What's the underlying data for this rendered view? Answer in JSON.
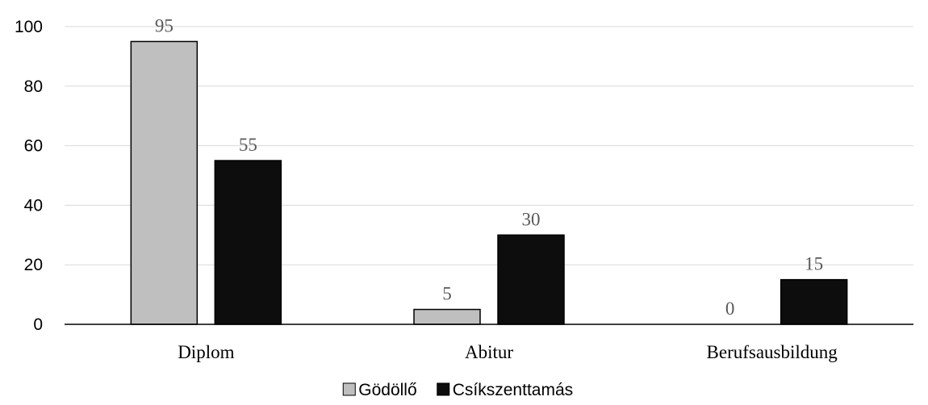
{
  "chart_data": {
    "type": "bar",
    "categories": [
      "Diplom",
      "Abitur",
      "Berufsausbildung"
    ],
    "series": [
      {
        "name": "Gödöllő",
        "values": [
          95,
          5,
          0
        ],
        "color": "#bfbfbf"
      },
      {
        "name": "Csíkszenttamás",
        "values": [
          55,
          30,
          15
        ],
        "color": "#0d0d0d"
      }
    ],
    "ylim": [
      0,
      100
    ],
    "yticks": [
      0,
      20,
      40,
      60,
      80,
      100
    ],
    "grid": true,
    "legend": "bottom-center",
    "data_labels": true
  }
}
